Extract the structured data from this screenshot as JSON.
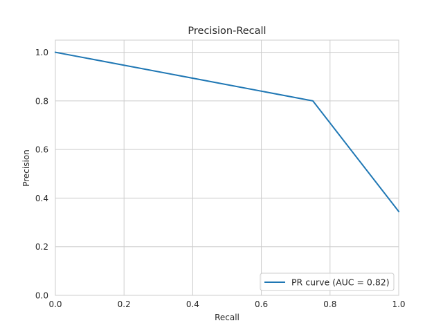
{
  "chart_data": {
    "type": "line",
    "title": "Precision-Recall",
    "xlabel": "Recall",
    "ylabel": "Precision",
    "xlim": [
      0,
      1
    ],
    "ylim": [
      0,
      1.05
    ],
    "x_ticks": [
      0.0,
      0.2,
      0.4,
      0.6,
      0.8,
      1.0
    ],
    "x_tick_labels": [
      "0.0",
      "0.2",
      "0.4",
      "0.6",
      "0.8",
      "1.0"
    ],
    "y_ticks": [
      0.0,
      0.2,
      0.4,
      0.6,
      0.8,
      1.0
    ],
    "y_tick_labels": [
      "0.0",
      "0.2",
      "0.4",
      "0.6",
      "0.8",
      "1.0"
    ],
    "grid": true,
    "legend_position": "lower-right",
    "series": [
      {
        "name": "PR curve (AUC = 0.82)",
        "color": "#1f77b4",
        "x": [
          0.0,
          0.75,
          1.0
        ],
        "y": [
          1.0,
          0.8,
          0.345
        ]
      }
    ]
  }
}
